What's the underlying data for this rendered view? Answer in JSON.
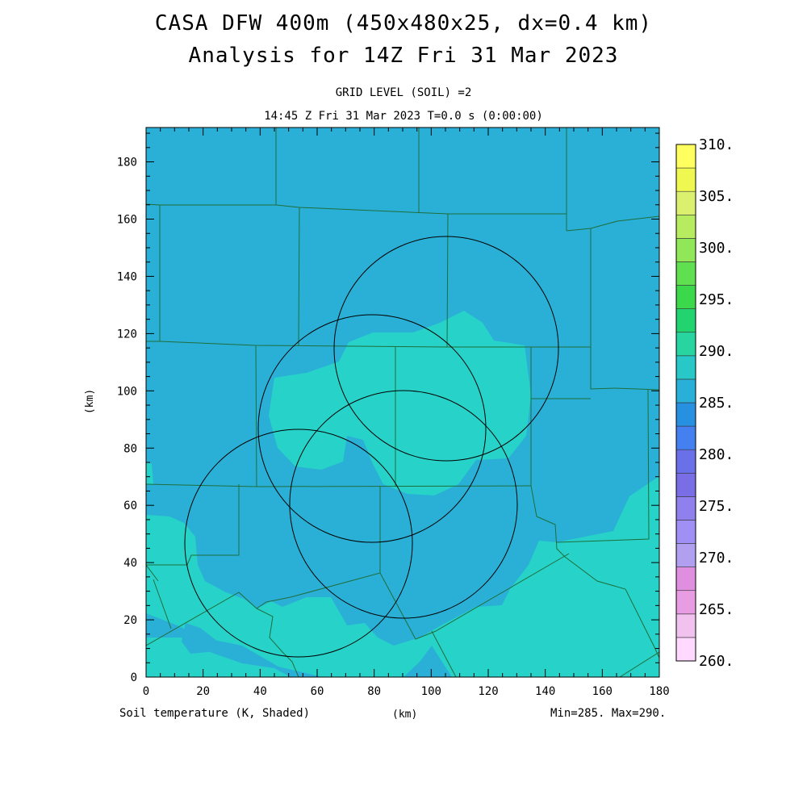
{
  "header": {
    "title_line1": "CASA DFW 400m (450x480x25, dx=0.4 km)",
    "title_line2": "Analysis for 14Z Fri 31 Mar 2023",
    "grid_level": "GRID LEVEL (SOIL) =2",
    "time_line": "14:45 Z Fri 31 Mar 2023   T=0.0 s (0:00:00)"
  },
  "footer": {
    "field_label": "Soil temperature (K, Shaded)",
    "x_unit": "(km)",
    "minmax": "Min=285. Max=290."
  },
  "chart_data": {
    "type": "heatmap",
    "xlabel": "(km)",
    "ylabel": "(km)",
    "xlim": [
      0,
      180
    ],
    "ylim": [
      0,
      192
    ],
    "x_ticks": [
      "0",
      "20",
      "40",
      "60",
      "80",
      "100",
      "120",
      "140",
      "160",
      "180"
    ],
    "y_ticks": [
      "0",
      "20",
      "40",
      "60",
      "80",
      "100",
      "120",
      "140",
      "160",
      "180"
    ],
    "field_min": 285,
    "field_max": 290,
    "colorbar": {
      "labels": [
        "260.",
        "265.",
        "270.",
        "275.",
        "280.",
        "285.",
        "290.",
        "295.",
        "300.",
        "305.",
        "310."
      ],
      "colors": [
        "#ffd9ff",
        "#f2c2ee",
        "#e89de3",
        "#e08fe0",
        "#b0a0ef",
        "#a08ff5",
        "#8f80ee",
        "#7a6ee6",
        "#6a70e8",
        "#4480f0",
        "#2890e0",
        "#28b0d8",
        "#28c8c8",
        "#28d4a0",
        "#22d470",
        "#3ad84a",
        "#60e050",
        "#90e858",
        "#b8ec60",
        "#dcf070",
        "#eef850",
        "#ffff60"
      ]
    },
    "regions": [
      {
        "name": "lower-field",
        "value_K": 285,
        "color": "#2ab0d6"
      },
      {
        "name": "upper-field",
        "value_K": 290,
        "color": "#27d3c9"
      }
    ],
    "radar_rings": [
      {
        "center": [
          106,
          116
        ],
        "radius": 39
      },
      {
        "center": [
          79,
          87
        ],
        "radius": 40
      },
      {
        "center": [
          90,
          61
        ],
        "radius": 40
      },
      {
        "center": [
          53,
          47
        ],
        "radius": 40
      }
    ]
  }
}
